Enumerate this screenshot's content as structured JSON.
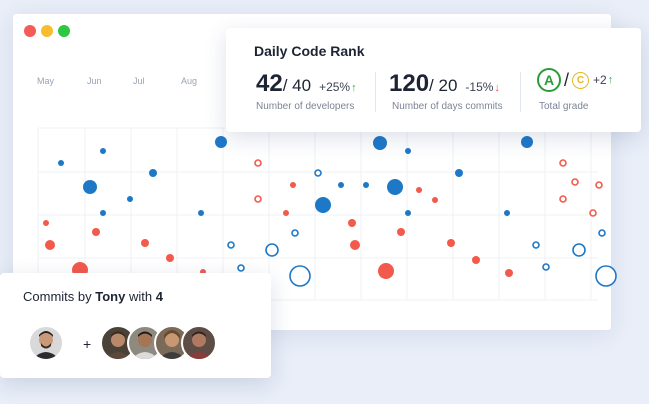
{
  "window": {
    "controls": [
      "close",
      "minimize",
      "maximize"
    ]
  },
  "months": [
    "May",
    "Jun",
    "Jul",
    "Aug"
  ],
  "colors": {
    "blue": "#1e78c8",
    "red": "#f25a4b",
    "up": "#2db14f",
    "down": "#ef4a4a",
    "grade_a": "#2a9d3a",
    "grade_c": "#e9b81b"
  },
  "rank_card": {
    "title": "Daily Code Rank",
    "developers": {
      "value": "42",
      "total": "/ 40",
      "change": "+25%",
      "trend": "up",
      "label": "Number of developers"
    },
    "commit_days": {
      "value": "120",
      "total": "/ 20",
      "change": "-15%",
      "trend": "down",
      "label": "Number of days commits"
    },
    "grade": {
      "current": "A",
      "separator": "/",
      "previous": "C",
      "change": "+2",
      "trend": "up",
      "label": "Total grade"
    }
  },
  "commits_card": {
    "prefix": "Commits by",
    "user": "Tony",
    "middle": "with",
    "count": "4",
    "plus": "+",
    "avatars": [
      {
        "name": "tony-avatar"
      },
      {
        "name": "contributor-avatar-1"
      },
      {
        "name": "contributor-avatar-2"
      },
      {
        "name": "contributor-avatar-3"
      },
      {
        "name": "contributor-avatar-4"
      }
    ]
  }
}
